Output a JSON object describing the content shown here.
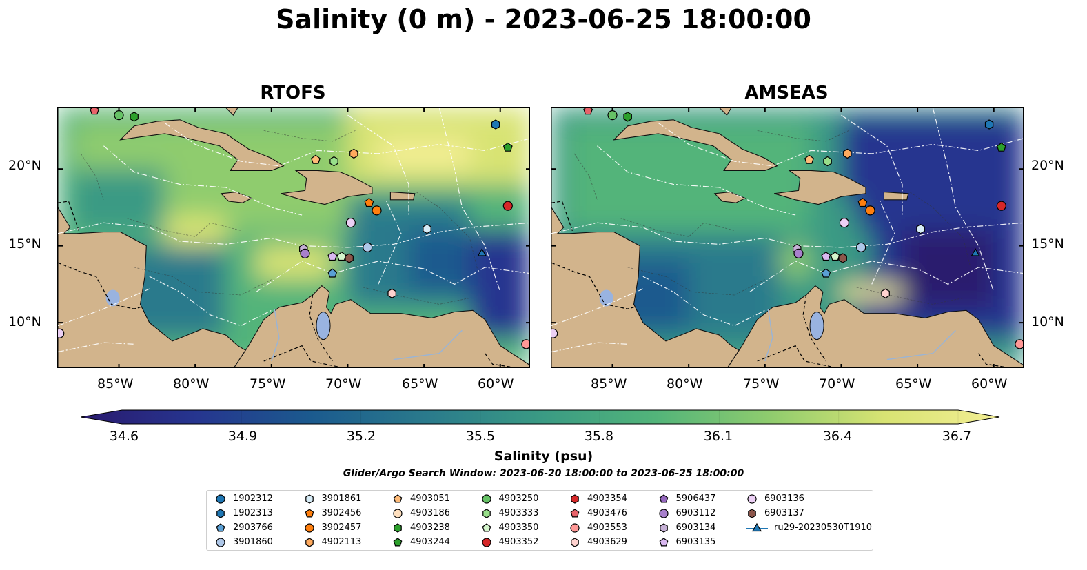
{
  "title": "Salinity (0 m) - 2023-06-25 18:00:00",
  "panels": [
    {
      "title": "RTOFS"
    },
    {
      "title": "AMSEAS"
    }
  ],
  "axes": {
    "lat_labels": [
      "20°N",
      "15°N",
      "10°N"
    ],
    "lon_labels": [
      "85°W",
      "80°W",
      "75°W",
      "70°W",
      "65°W",
      "60°W"
    ]
  },
  "colorbar": {
    "label": "Salinity (psu)",
    "ticks": [
      "34.6",
      "34.9",
      "35.2",
      "35.5",
      "35.8",
      "36.1",
      "36.4",
      "36.7"
    ],
    "range": [
      34.6,
      36.7
    ],
    "colormap": [
      "#2a1a6e",
      "#26358f",
      "#1b5a8e",
      "#2a7a8c",
      "#3a9a84",
      "#52b47a",
      "#8fcc6e",
      "#d8e373",
      "#f3ee94"
    ]
  },
  "search_window": "Glider/Argo Search Window: 2023-06-20 18:00:00 to 2023-06-25 18:00:00",
  "land_color": "#d2b48c",
  "lake_color": "#99b3e0",
  "legend": [
    {
      "label": "1902312",
      "marker": "circle",
      "color": "#1f77b4"
    },
    {
      "label": "1902313",
      "marker": "hexagon",
      "color": "#1f77b4"
    },
    {
      "label": "2903766",
      "marker": "pentagon",
      "color": "#5a9fd4"
    },
    {
      "label": "3901860",
      "marker": "circle",
      "color": "#aec7e8"
    },
    {
      "label": "3901861",
      "marker": "hexagon",
      "color": "#d7ecf7"
    },
    {
      "label": "3902456",
      "marker": "pentagon",
      "color": "#ff7f0e"
    },
    {
      "label": "3902457",
      "marker": "circle",
      "color": "#ff7f0e"
    },
    {
      "label": "4902113",
      "marker": "hexagon",
      "color": "#ffaa5e"
    },
    {
      "label": "4903051",
      "marker": "pentagon",
      "color": "#ffbb78"
    },
    {
      "label": "4903186",
      "marker": "circle",
      "color": "#ffe0bf"
    },
    {
      "label": "4903238",
      "marker": "hexagon",
      "color": "#2ca02c"
    },
    {
      "label": "4903244",
      "marker": "pentagon",
      "color": "#2ca02c"
    },
    {
      "label": "4903250",
      "marker": "circle",
      "color": "#66c266"
    },
    {
      "label": "4903333",
      "marker": "hexagon",
      "color": "#98df8a"
    },
    {
      "label": "4903350",
      "marker": "pentagon",
      "color": "#d4f5cc"
    },
    {
      "label": "4903352",
      "marker": "circle",
      "color": "#d62728"
    },
    {
      "label": "4903354",
      "marker": "hexagon",
      "color": "#d62728"
    },
    {
      "label": "4903476",
      "marker": "pentagon",
      "color": "#e8636a"
    },
    {
      "label": "4903553",
      "marker": "circle",
      "color": "#ff9896"
    },
    {
      "label": "4903629",
      "marker": "hexagon",
      "color": "#ffd2cf"
    },
    {
      "label": "5906437",
      "marker": "pentagon",
      "color": "#9467bd"
    },
    {
      "label": "6903112",
      "marker": "circle",
      "color": "#a880cc"
    },
    {
      "label": "6903134",
      "marker": "hexagon",
      "color": "#c5b0d5"
    },
    {
      "label": "6903135",
      "marker": "pentagon",
      "color": "#d9b8f0"
    },
    {
      "label": "6903136",
      "marker": "circle",
      "color": "#ecd0f5"
    },
    {
      "label": "6903137",
      "marker": "hexagon",
      "color": "#8c564b"
    },
    {
      "label": "ru29-20230530T1910",
      "marker": "triangle-line",
      "color": "#1f77b4"
    }
  ],
  "floats_lonlat": [
    {
      "id": "1902313",
      "lon": -60.3,
      "lat": 22.9
    },
    {
      "id": "4903244",
      "lon": -59.5,
      "lat": 21.4
    },
    {
      "id": "4903250",
      "lon": -85.0,
      "lat": 23.5
    },
    {
      "id": "4903238",
      "lon": -84.0,
      "lat": 23.4
    },
    {
      "id": "4903476",
      "lon": -86.6,
      "lat": 23.8
    },
    {
      "id": "4902113",
      "lon": -69.6,
      "lat": 21.0
    },
    {
      "id": "4903051",
      "lon": -72.1,
      "lat": 20.6
    },
    {
      "id": "4903333",
      "lon": -70.9,
      "lat": 20.5
    },
    {
      "id": "3902456",
      "lon": -68.6,
      "lat": 17.8
    },
    {
      "id": "3902457",
      "lon": -68.1,
      "lat": 17.3
    },
    {
      "id": "4903352",
      "lon": -59.5,
      "lat": 17.6
    },
    {
      "id": "6903136",
      "lon": -69.8,
      "lat": 16.5
    },
    {
      "id": "3901861",
      "lon": -64.8,
      "lat": 16.1
    },
    {
      "id": "3901860",
      "lon": -68.7,
      "lat": 14.9
    },
    {
      "id": "6903134",
      "lon": -72.9,
      "lat": 14.8
    },
    {
      "id": "6903112",
      "lon": -72.8,
      "lat": 14.5
    },
    {
      "id": "6903135",
      "lon": -71.0,
      "lat": 14.3
    },
    {
      "id": "4903350",
      "lon": -70.4,
      "lat": 14.3
    },
    {
      "id": "6903137",
      "lon": -69.9,
      "lat": 14.2
    },
    {
      "id": "2903766",
      "lon": -71.0,
      "lat": 13.2
    },
    {
      "id": "4903629",
      "lon": -67.1,
      "lat": 11.9
    },
    {
      "id": "ru29-20230530T1910",
      "lon": -61.2,
      "lat": 14.5
    },
    {
      "id": "4903553",
      "lon": -58.3,
      "lat": 8.6
    },
    {
      "id": "6903136b",
      "lon": -88.9,
      "lat": 9.3
    }
  ]
}
